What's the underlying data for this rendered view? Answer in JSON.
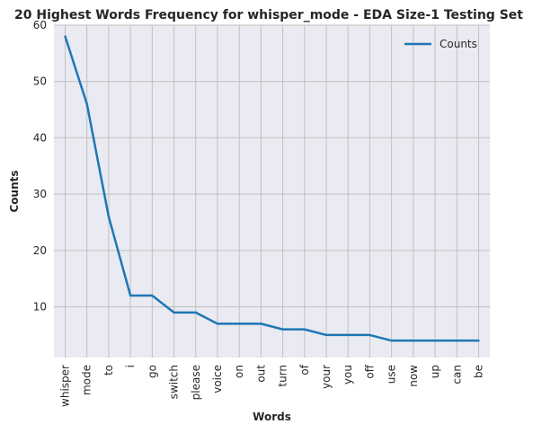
{
  "chart_data": {
    "type": "line",
    "title": "20 Highest Words Frequency for whisper_mode - EDA Size-1 Testing Set",
    "xlabel": "Words",
    "ylabel": "Counts",
    "categories": [
      "whisper",
      "mode",
      "to",
      "i",
      "go",
      "switch",
      "please",
      "voice",
      "on",
      "out",
      "turn",
      "of",
      "your",
      "you",
      "off",
      "use",
      "now",
      "up",
      "can",
      "be"
    ],
    "series": [
      {
        "name": "Counts",
        "values": [
          58,
          46,
          26,
          12,
          12,
          9,
          9,
          7,
          7,
          7,
          6,
          6,
          5,
          5,
          5,
          4,
          4,
          4,
          4,
          4
        ]
      }
    ],
    "ylim": [
      1,
      60
    ],
    "yticks": [
      10,
      20,
      30,
      40,
      50,
      60
    ],
    "grid": true,
    "legend": "top-right",
    "colors": {
      "line": "#1f77b4",
      "plot_background": "#eaeaf2",
      "grid": "#c0c0c0"
    }
  }
}
